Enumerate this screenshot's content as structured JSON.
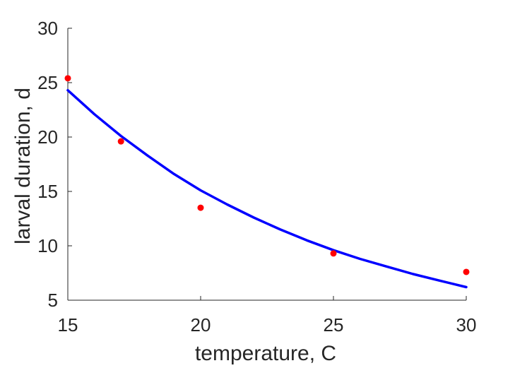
{
  "chart_data": {
    "type": "scatter",
    "title": "",
    "xlabel": "temperature, C",
    "ylabel": "larval duration, d",
    "xlim": [
      15,
      30
    ],
    "ylim": [
      5,
      30
    ],
    "xticks": [
      15,
      20,
      25,
      30
    ],
    "yticks": [
      5,
      10,
      15,
      20,
      25,
      30
    ],
    "xtick_labels": [
      "15",
      "20",
      "25",
      "30"
    ],
    "ytick_labels": [
      "5",
      "10",
      "15",
      "20",
      "25",
      "30"
    ],
    "grid": false,
    "box": false,
    "series": [
      {
        "kind": "points",
        "color": "#ff0000",
        "x": [
          15,
          17,
          20,
          25,
          30
        ],
        "y": [
          25.4,
          19.6,
          13.5,
          9.3,
          7.6
        ]
      },
      {
        "kind": "fit-line",
        "color": "#0000ff",
        "x": [
          15,
          16,
          17,
          18,
          19,
          20,
          21,
          22,
          23,
          24,
          25,
          26,
          27,
          28,
          29,
          30
        ],
        "y": [
          24.3,
          22.1,
          20.1,
          18.3,
          16.6,
          15.1,
          13.8,
          12.6,
          11.5,
          10.5,
          9.6,
          8.8,
          8.1,
          7.4,
          6.8,
          6.2
        ]
      }
    ]
  },
  "colors": {
    "axis": "#262626",
    "points": "#ff0000",
    "fit_line": "#0000ff"
  }
}
